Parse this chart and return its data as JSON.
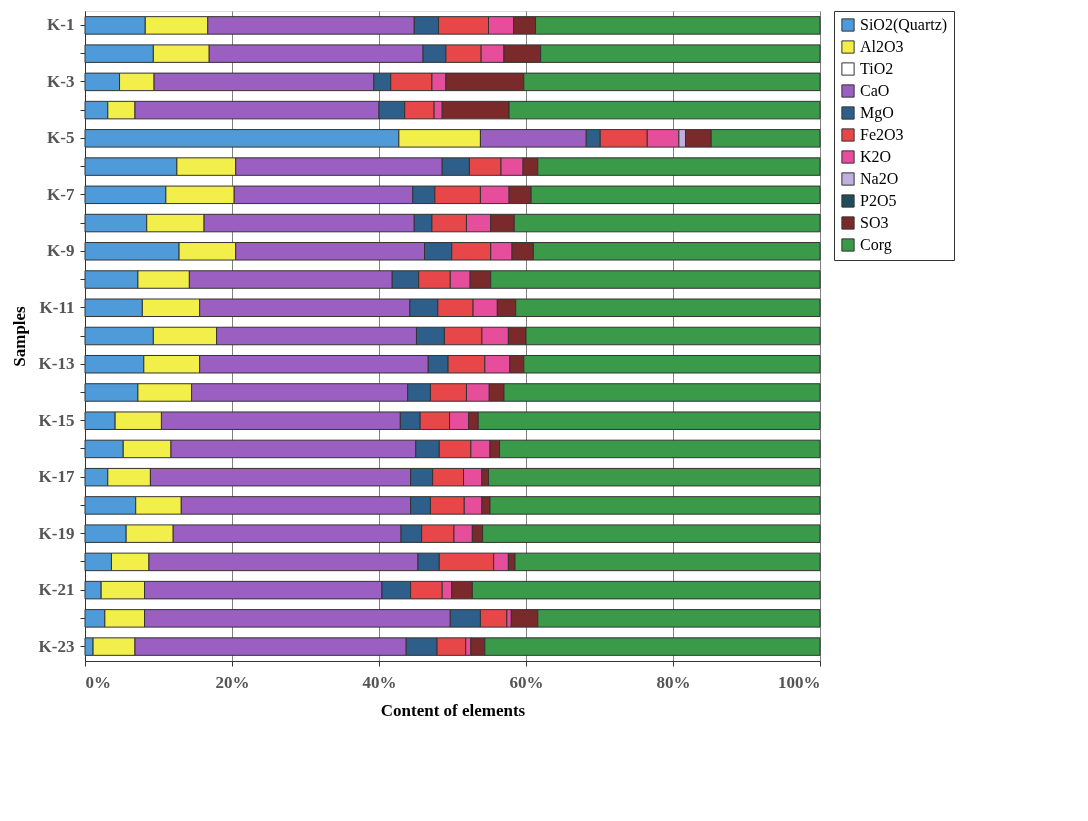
{
  "chart_data": {
    "type": "bar",
    "orientation": "horizontal",
    "stacked": true,
    "xlabel": "Content of elements",
    "ylabel": "Samples",
    "categories": [
      "K-1",
      null,
      "K-3",
      null,
      "K-5",
      null,
      "K-7",
      null,
      "K-9",
      null,
      "K-11",
      null,
      "K-13",
      null,
      "K-15",
      null,
      "K-17",
      null,
      "K-19",
      null,
      "K-21",
      null,
      "K-23"
    ],
    "xlim": [
      0,
      100
    ],
    "xticks": [
      {
        "value": 0,
        "label": "0%"
      },
      {
        "value": 20,
        "label": "20%"
      },
      {
        "value": 40,
        "label": "40%"
      },
      {
        "value": 60,
        "label": "60%"
      },
      {
        "value": 80,
        "label": "80%"
      },
      {
        "value": 100,
        "label": "100%"
      }
    ],
    "grid": "x",
    "legend": "right",
    "series": [
      {
        "name": "SiO2(Quartz)",
        "color": "#4f9bd9",
        "values": [
          8.2,
          9.3,
          4.7,
          3.1,
          42.7,
          12.5,
          11.0,
          8.4,
          12.8,
          7.2,
          7.8,
          9.3,
          8.0,
          7.2,
          4.1,
          5.2,
          3.1,
          6.9,
          5.6,
          3.6,
          2.2,
          2.7,
          1.1
        ]
      },
      {
        "name": "Al2O3",
        "color": "#f2ee4a",
        "values": [
          8.5,
          7.6,
          4.7,
          3.7,
          11.1,
          8.0,
          9.3,
          7.8,
          7.7,
          7.0,
          7.8,
          8.6,
          7.6,
          7.3,
          6.3,
          6.5,
          5.8,
          6.2,
          6.4,
          5.1,
          5.9,
          5.4,
          5.7
        ]
      },
      {
        "name": "TiO2",
        "color": "#ffffff",
        "values": [
          null,
          null,
          null,
          null,
          null,
          null,
          null,
          null,
          null,
          null,
          null,
          null,
          null,
          null,
          null,
          null,
          null,
          null,
          null,
          null,
          null,
          null,
          null
        ]
      },
      {
        "name": "CaO",
        "color": "#9a5fc0",
        "values": [
          28.1,
          29.1,
          29.9,
          33.2,
          14.4,
          28.1,
          24.3,
          28.6,
          25.7,
          27.6,
          28.6,
          27.2,
          31.1,
          29.4,
          32.5,
          33.3,
          35.4,
          31.2,
          31.0,
          36.6,
          32.3,
          41.6,
          36.9
        ]
      },
      {
        "name": "MgO",
        "color": "#2e5f8a",
        "values": [
          3.3,
          3.1,
          2.3,
          3.5,
          1.9,
          3.7,
          3.0,
          2.4,
          3.7,
          3.6,
          3.8,
          3.8,
          2.7,
          3.1,
          2.7,
          3.2,
          3.0,
          2.7,
          2.8,
          2.9,
          3.9,
          4.1,
          4.2
        ]
      },
      {
        "name": "Fe2O3",
        "color": "#e8474a",
        "values": [
          6.8,
          4.8,
          5.6,
          4.0,
          6.4,
          4.3,
          6.2,
          4.7,
          5.3,
          4.3,
          4.8,
          5.1,
          5.0,
          4.9,
          4.0,
          4.3,
          4.2,
          4.6,
          4.4,
          7.4,
          4.3,
          3.6,
          3.9
        ]
      },
      {
        "name": "K2O",
        "color": "#e64d9a",
        "values": [
          3.4,
          3.1,
          1.9,
          1.1,
          4.3,
          3.0,
          3.9,
          3.3,
          2.9,
          2.7,
          3.3,
          3.6,
          3.4,
          3.1,
          2.6,
          2.6,
          2.5,
          2.4,
          2.5,
          2.0,
          1.3,
          0.6,
          0.7
        ]
      },
      {
        "name": "Na2O",
        "color": "#c0b0e0",
        "values": [
          null,
          null,
          null,
          null,
          0.9,
          null,
          null,
          null,
          null,
          null,
          null,
          null,
          null,
          null,
          null,
          null,
          null,
          null,
          null,
          null,
          null,
          null,
          null
        ]
      },
      {
        "name": "P2O5",
        "color": "#1f4e5a",
        "values": [
          null,
          null,
          null,
          null,
          null,
          null,
          null,
          null,
          null,
          null,
          null,
          null,
          null,
          null,
          null,
          null,
          null,
          null,
          null,
          null,
          null,
          null,
          null
        ]
      },
      {
        "name": "SO3",
        "color": "#7a2a2a",
        "values": [
          3.0,
          5.0,
          10.6,
          9.1,
          3.5,
          2.0,
          3.0,
          3.2,
          2.9,
          2.8,
          2.5,
          2.4,
          1.9,
          2.0,
          1.3,
          1.3,
          0.9,
          1.1,
          1.4,
          0.9,
          2.8,
          3.6,
          1.9
        ]
      },
      {
        "name": "Corg",
        "color": "#3a9a4a",
        "values": [
          38.7,
          38.0,
          40.3,
          42.3,
          14.8,
          38.4,
          39.3,
          41.6,
          39.0,
          44.8,
          41.4,
          40.0,
          40.3,
          43.0,
          46.5,
          43.6,
          45.1,
          44.9,
          45.9,
          41.5,
          47.3,
          38.4,
          45.6
        ]
      }
    ]
  }
}
